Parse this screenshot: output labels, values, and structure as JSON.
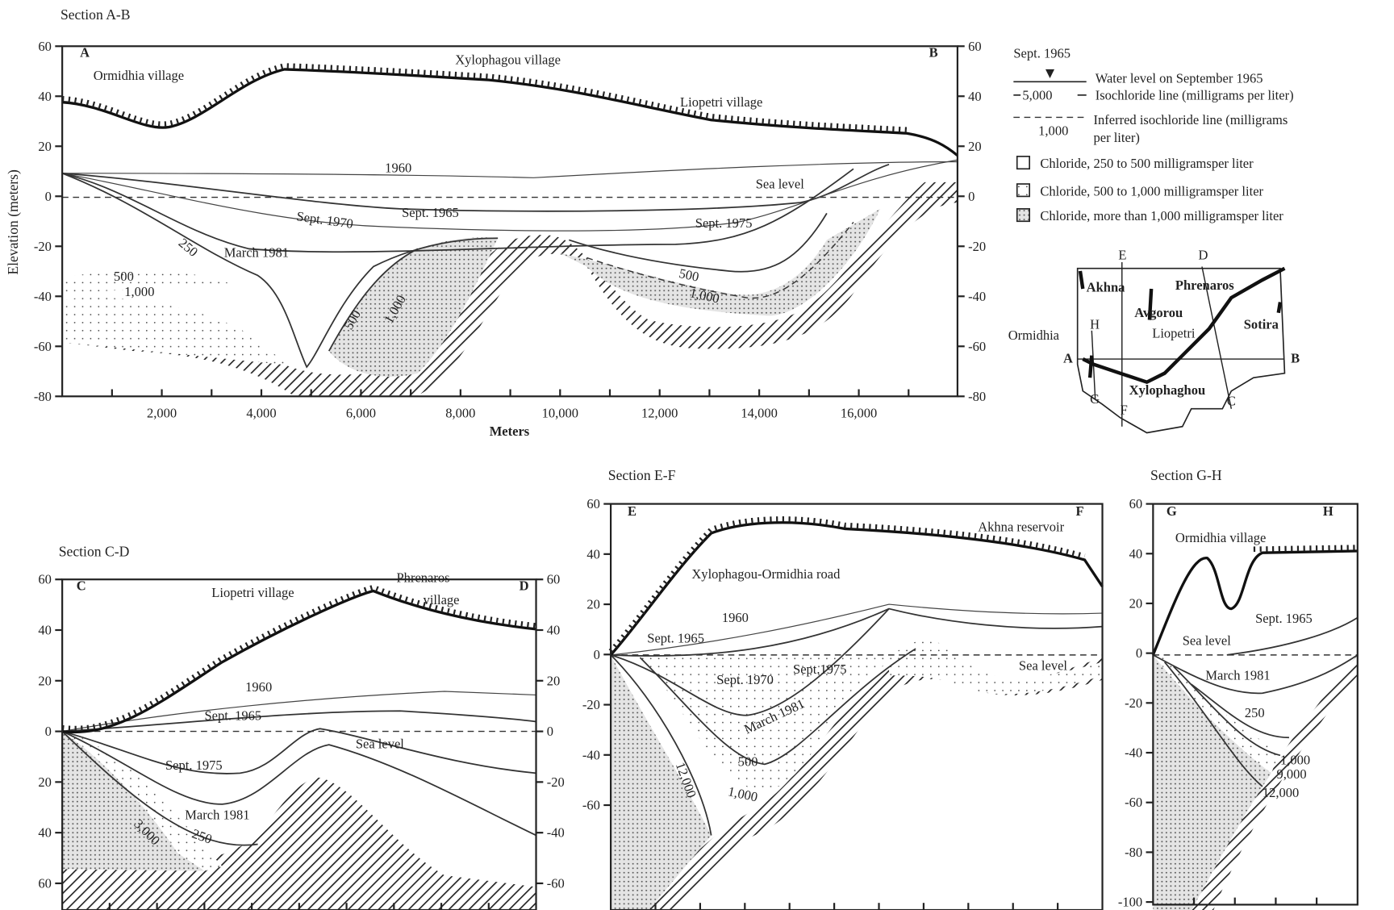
{
  "sections": [
    {
      "title": "Section A-B",
      "end_left": "A",
      "end_right": "B",
      "y_axis_title": "Elevation (meters)",
      "x_axis_title": "Meters",
      "y_ticks_left": [
        "60",
        "40",
        "20",
        "0",
        "-20",
        "-40",
        "-60",
        "-80"
      ],
      "y_ticks_right": [
        "60",
        "40",
        "20",
        "0",
        "-20",
        "-40",
        "-60",
        "-80"
      ],
      "x_ticks": [
        "2,000",
        "4,000",
        "6,000",
        "8,000",
        "10,000",
        "12,000",
        "14,000",
        "16,000"
      ],
      "labels": [
        "Ormidhia village",
        "Xylophagou village",
        "Liopetri village",
        "1960",
        "Sea level",
        "Sept. 1970",
        "Sept. 1965",
        "Sept. 1975",
        "250",
        "March 1981",
        "500",
        "1,000",
        "500",
        "1,000",
        "500",
        "1,000"
      ]
    },
    {
      "title": "Section C-D",
      "end_left": "C",
      "end_right": "D",
      "y_ticks_left": [
        "60",
        "40",
        "20",
        "0",
        "20",
        "40",
        "60"
      ],
      "y_ticks_right": [
        "60",
        "40",
        "20",
        "0",
        "-20",
        "-40",
        "-60"
      ],
      "labels": [
        "Liopetri village",
        "Phrenaros",
        "village",
        "1960",
        "Sept. 1965",
        "Sea level",
        "Sept. 1975",
        "March 1981",
        "250",
        "3,000"
      ]
    },
    {
      "title": "Section E-F",
      "end_left": "E",
      "end_right": "F",
      "y_ticks_left": [
        "60",
        "40",
        "20",
        "0",
        "-20",
        "-40",
        "-60"
      ],
      "labels": [
        "Akhna reservoir",
        "Xylophagou-Ormidhia road",
        "1960",
        "Sept. 1965",
        "Sept. 1970",
        "Sept.1975",
        "Sea level",
        "March 1981",
        "500",
        "1,000",
        "12,000"
      ]
    },
    {
      "title": "Section G-H",
      "end_left": "G",
      "end_right": "H",
      "y_ticks_left": [
        "60",
        "40",
        "20",
        "0",
        "-20",
        "-40",
        "-60",
        "-80",
        "-100"
      ],
      "labels": [
        "Ormidhia village",
        "Sept. 1965",
        "Sea level",
        "March 1981",
        "250",
        "1,000",
        "9,000",
        "12,000"
      ]
    }
  ],
  "legend": {
    "symbol_date": "Sept. 1965",
    "water_level": "Water level on September 1965",
    "isochloride_value": "5,000",
    "isochloride": "Isochloride line (milligrams per liter)",
    "inferred_value": "1,000",
    "inferred": [
      "Inferred isochloride line (milligrams",
      "per liter)"
    ],
    "chloride": [
      "Chloride, 250 to 500 milligramsper liter",
      "Chloride, 500 to 1,000 milligramsper liter",
      "Chloride, more than 1,000 milligramsper liter"
    ]
  },
  "map": {
    "labels": [
      "E",
      "D",
      "Akhna",
      "Phrenaros",
      "Avgorou",
      "Liopetri",
      "Sotira",
      "Ormidhia",
      "H",
      "A",
      "B",
      "G",
      "F",
      "Xylophaghou",
      "C"
    ]
  }
}
